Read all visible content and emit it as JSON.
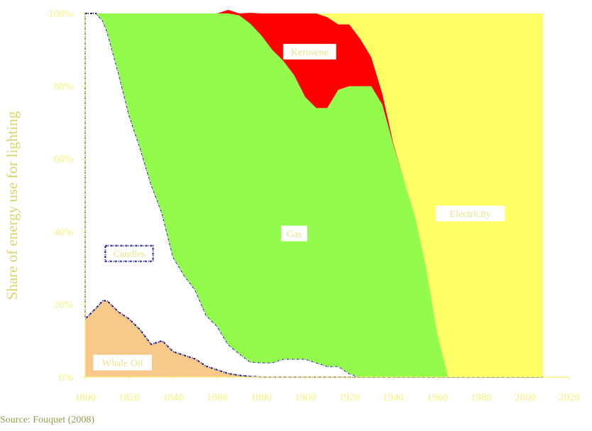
{
  "chart_data": {
    "type": "area",
    "title": "",
    "xlabel": "",
    "ylabel": "Share of energy use for lighting",
    "xlim": [
      1800,
      2020
    ],
    "ylim": [
      0,
      100
    ],
    "x_ticks": [
      "1800",
      "1820",
      "1840",
      "1860",
      "1880",
      "1900",
      "1920",
      "1940",
      "1960",
      "1980",
      "2000",
      "2020"
    ],
    "y_ticks": [
      "0%",
      "20%",
      "40%",
      "60%",
      "80%",
      "100%"
    ],
    "grid": false,
    "legend": "none",
    "x": [
      1800,
      1805,
      1808,
      1810,
      1815,
      1820,
      1825,
      1830,
      1835,
      1840,
      1845,
      1850,
      1855,
      1860,
      1865,
      1870,
      1875,
      1880,
      1885,
      1890,
      1895,
      1900,
      1905,
      1910,
      1915,
      1920,
      1925,
      1930,
      1935,
      1940,
      1945,
      1950,
      1955,
      1960,
      1965,
      1970,
      1980,
      1990,
      2000,
      2008
    ],
    "series": [
      {
        "name": "Whale Oil",
        "color": "#f7c98b",
        "values": [
          16,
          19,
          21,
          21,
          18,
          16,
          13,
          9,
          10,
          7,
          6,
          5,
          3,
          2,
          1,
          0.5,
          0.2,
          0,
          0,
          0,
          0,
          0,
          0,
          0,
          0,
          0,
          0,
          0,
          0,
          0,
          0,
          0,
          0,
          0,
          0,
          0,
          0,
          0,
          0,
          0
        ]
      },
      {
        "name": "Candles",
        "color": "#ffffff",
        "values": [
          84,
          81,
          77,
          74,
          66,
          56,
          50,
          44,
          35,
          26,
          22,
          19,
          14,
          12,
          8,
          6,
          4,
          4,
          4,
          5,
          5,
          5,
          4,
          3,
          3,
          1,
          0,
          0,
          0,
          0,
          0,
          0,
          0,
          0,
          0,
          0,
          0,
          0,
          0,
          0
        ]
      },
      {
        "name": "Gas",
        "color": "#93fb4b",
        "values": [
          0,
          0,
          2,
          5,
          16,
          28,
          37,
          47,
          55,
          67,
          72,
          76,
          83,
          86,
          91,
          93,
          93,
          90,
          86,
          82,
          78,
          72,
          70,
          71,
          76,
          79,
          80,
          80,
          75,
          64,
          54,
          44,
          30,
          12,
          0,
          0,
          0,
          0,
          0,
          0
        ]
      },
      {
        "name": "Kerosene",
        "color": "#ff0000",
        "values": [
          0,
          0,
          0,
          0,
          0,
          0,
          0,
          0,
          0,
          0,
          0,
          0,
          0,
          0,
          1,
          0.5,
          3,
          6,
          10,
          13,
          17,
          23,
          26,
          25,
          18,
          17,
          13,
          8,
          3,
          0.5,
          0,
          0,
          0,
          0,
          0,
          0,
          0,
          0,
          0,
          0
        ]
      },
      {
        "name": "Electricity",
        "color": "#ffff66",
        "values": [
          0,
          0,
          0,
          0,
          0,
          0,
          0,
          0,
          0,
          0,
          0,
          0,
          0,
          0,
          0,
          0,
          0,
          0,
          0,
          0,
          0,
          0,
          0,
          1,
          3,
          3,
          7,
          12,
          22,
          35.5,
          46,
          56,
          70,
          88,
          100,
          100,
          100,
          100,
          100,
          100
        ]
      }
    ],
    "annotations": [
      {
        "text": "Candles",
        "x": 1820,
        "y": 34
      },
      {
        "text": "Whale Oil",
        "x": 1817,
        "y": 4
      },
      {
        "text": "Gas",
        "x": 1895,
        "y": 39.5
      },
      {
        "text": "Kerosene",
        "x": 1902,
        "y": 89.5
      },
      {
        "text": "Electricity",
        "x": 1975,
        "y": 45
      }
    ],
    "source": "Source: Fouquet (2008)"
  }
}
